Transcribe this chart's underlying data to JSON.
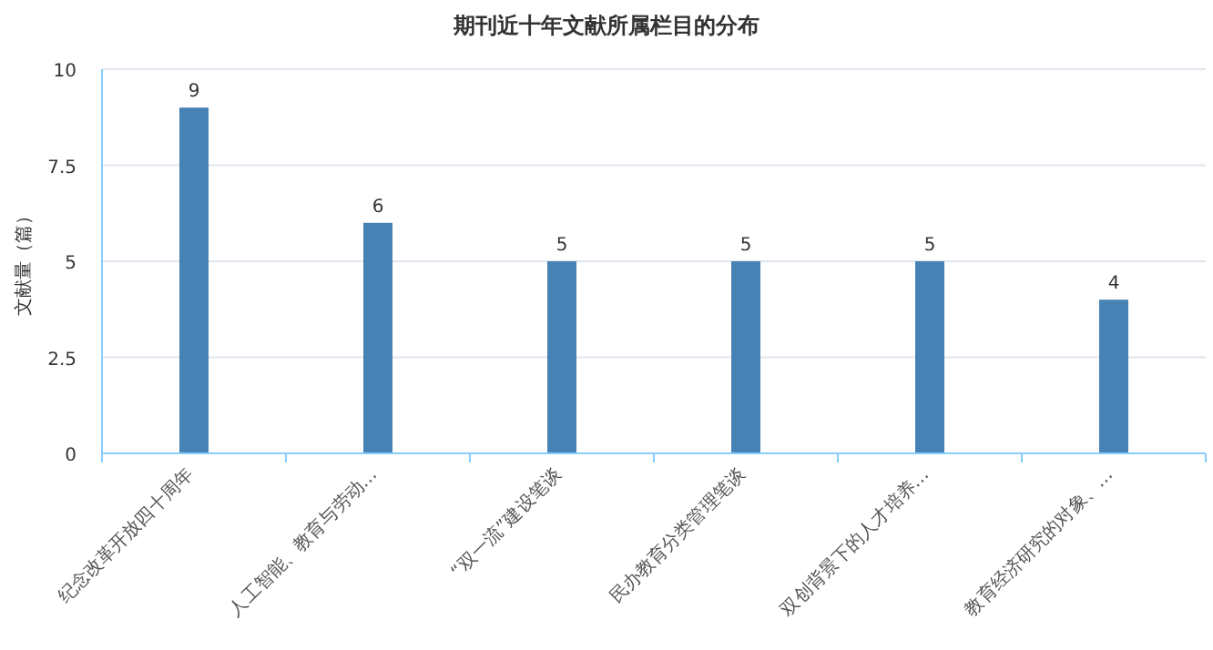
{
  "chart_data": {
    "type": "bar",
    "title": "期刊近十年文献所属栏目的分布",
    "ylabel": "文献量（篇）",
    "categories": [
      "纪念改革开放四十周年",
      "人工智能、教育与劳动…",
      "“双一流”建设笔谈",
      "民办教育分类管理笔谈",
      "双创背景下的人才培养…",
      "教育经济研究的对象、…"
    ],
    "values": [
      9,
      6,
      5,
      5,
      5,
      4
    ],
    "color": "#4682b4",
    "ylim": [
      0,
      10
    ],
    "yticks": [
      0,
      2.5,
      5,
      7.5,
      10
    ],
    "grid": "y",
    "data_labels": true
  }
}
